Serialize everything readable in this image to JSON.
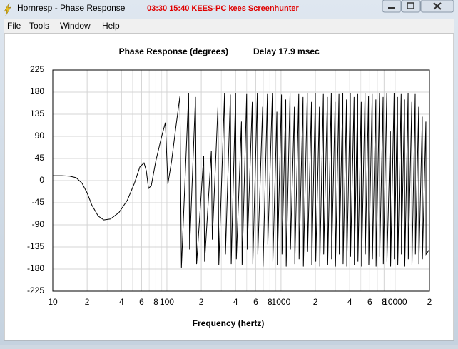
{
  "window": {
    "title": "Hornresp - Phase Response",
    "watermark": "03:30 15:40 KEES-PC kees Screenhunter"
  },
  "menu": [
    "File",
    "Tools",
    "Window",
    "Help"
  ],
  "chart_data": {
    "type": "line",
    "title": "Phase Response (degrees)",
    "annotation": "Delay 17.9 msec",
    "xlabel": "Frequency (hertz)",
    "xscale": "log",
    "grid": true,
    "color": "#000000",
    "xlim": [
      10,
      20000
    ],
    "ylim": [
      -225,
      225
    ],
    "yticks": [
      225,
      180,
      135,
      90,
      45,
      0,
      -45,
      -90,
      -135,
      -180,
      -225
    ],
    "xticks": [
      10,
      {
        "value": 20,
        "label": "2"
      },
      {
        "value": 40,
        "label": "4"
      },
      {
        "value": 60,
        "label": "6"
      },
      {
        "value": 80,
        "label": "8"
      },
      100,
      {
        "value": 200,
        "label": "2"
      },
      {
        "value": 400,
        "label": "4"
      },
      {
        "value": 600,
        "label": "6"
      },
      {
        "value": 800,
        "label": "8"
      },
      1000,
      {
        "value": 2000,
        "label": "2"
      },
      {
        "value": 4000,
        "label": "4"
      },
      {
        "value": 6000,
        "label": "6"
      },
      {
        "value": 8000,
        "label": "8"
      },
      10000,
      {
        "value": 20000,
        "label": "2"
      }
    ],
    "xgrid_minor": [
      30,
      50,
      70,
      90,
      300,
      500,
      700,
      900,
      3000,
      5000,
      7000,
      9000
    ],
    "x": [
      10,
      12,
      14,
      16,
      18,
      20,
      22,
      25,
      28,
      32,
      38,
      45,
      52,
      58,
      63,
      66,
      69,
      73,
      80,
      90,
      97,
      102,
      110,
      120,
      130,
      134,
      155,
      158,
      178,
      182,
      210,
      214,
      245,
      250,
      280,
      285,
      320,
      326,
      360,
      366,
      400,
      406,
      450,
      456,
      500,
      506,
      560,
      566,
      620,
      626,
      690,
      696,
      760,
      766,
      840,
      848,
      920,
      928,
      1010,
      1020,
      1100,
      1110,
      1200,
      1210,
      1310,
      1320,
      1430,
      1440,
      1560,
      1570,
      1700,
      1710,
      1850,
      1860,
      2000,
      2015,
      2170,
      2185,
      2350,
      2365,
      2550,
      2565,
      2760,
      2775,
      2980,
      3000,
      3220,
      3240,
      3480,
      3500,
      3750,
      3770,
      4050,
      4070,
      4370,
      4390,
      4700,
      4720,
      5050,
      5080,
      5450,
      5480,
      5850,
      5880,
      6300,
      6330,
      6780,
      6810,
      7300,
      7330,
      7850,
      7880,
      8450,
      8480,
      9100,
      9130,
      9800,
      9830,
      10500,
      10550,
      11300,
      11350,
      12100,
      12150,
      13000,
      13050,
      14000,
      14050,
      15000,
      15050,
      16100,
      16150,
      17300,
      17350,
      18600,
      18650,
      20000
    ],
    "values": [
      10,
      10,
      9,
      6,
      -5,
      -25,
      -50,
      -72,
      -80,
      -78,
      -65,
      -40,
      -5,
      28,
      36,
      20,
      -16,
      -10,
      40,
      90,
      118,
      -7,
      40,
      110,
      171,
      -177,
      178,
      -140,
      170,
      -170,
      50,
      -165,
      60,
      -120,
      150,
      -172,
      178,
      -150,
      175,
      -170,
      178,
      -160,
      120,
      -172,
      176,
      -140,
      160,
      -170,
      178,
      -150,
      150,
      -175,
      176,
      -130,
      178,
      -165,
      140,
      -172,
      175,
      -150,
      165,
      -175,
      178,
      -140,
      150,
      -170,
      176,
      -160,
      170,
      -175,
      178,
      -145,
      160,
      -172,
      178,
      -165,
      150,
      -175,
      176,
      -150,
      170,
      -172,
      178,
      -160,
      160,
      -175,
      176,
      -150,
      178,
      -170,
      165,
      -175,
      178,
      -155,
      170,
      -172,
      176,
      -165,
      160,
      -175,
      178,
      -150,
      172,
      -172,
      176,
      -160,
      165,
      -175,
      178,
      -155,
      170,
      -170,
      178,
      -165,
      100,
      -175,
      178,
      -160,
      170,
      -172,
      176,
      -150,
      165,
      -175,
      178,
      -160,
      160,
      -172,
      176,
      -150,
      150,
      -170,
      130,
      -160,
      120,
      -150,
      -140
    ]
  }
}
